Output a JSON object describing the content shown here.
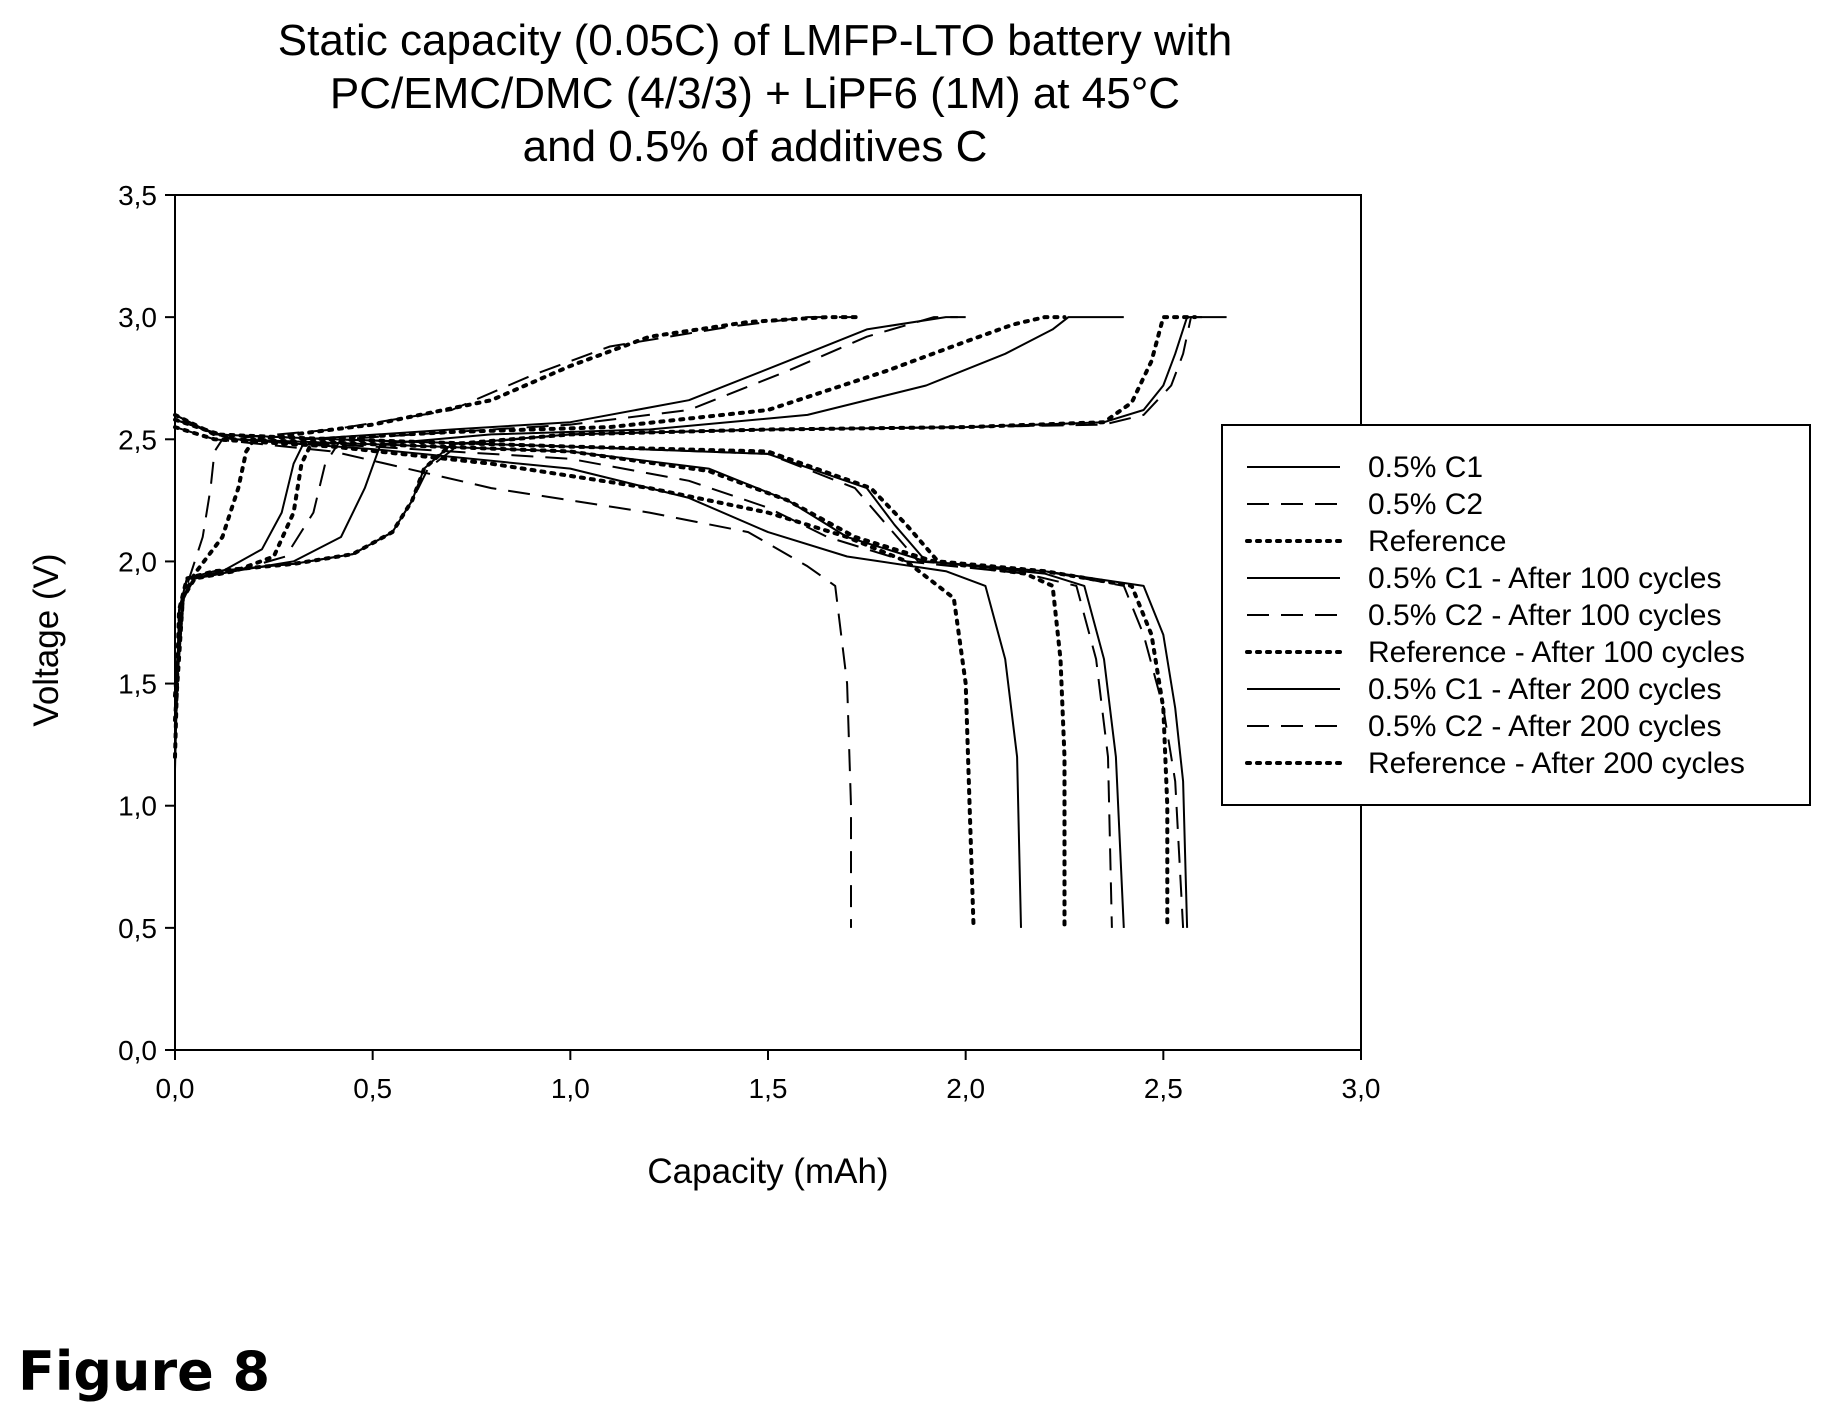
{
  "figure_label": "Figure 8",
  "chart_data": {
    "type": "line",
    "title_lines": [
      "Static capacity (0.05C) of LMFP-LTO battery with",
      "PC/EMC/DMC (4/3/3) + LiPF6 (1M) at 45°C",
      "and 0.5% of additives C"
    ],
    "xlabel": "Capacity (mAh)",
    "ylabel": "Voltage (V)",
    "xlim": [
      0,
      3.0
    ],
    "ylim": [
      0,
      3.5
    ],
    "x_ticks": [
      0.0,
      0.5,
      1.0,
      1.5,
      2.0,
      2.5,
      3.0
    ],
    "x_tick_labels": [
      "0,0",
      "0,5",
      "1,0",
      "1,5",
      "2,0",
      "2,5",
      "3,0"
    ],
    "y_ticks": [
      0.0,
      0.5,
      1.0,
      1.5,
      2.0,
      2.5,
      3.0,
      3.5
    ],
    "y_tick_labels": [
      "0,0",
      "0,5",
      "1,0",
      "1,5",
      "2,0",
      "2,5",
      "3,0",
      "3,5"
    ],
    "grid": false,
    "legend_position": "right",
    "colors": {
      "line": "#000000",
      "background": "#ffffff"
    },
    "series": [
      {
        "name": "0.5% C1",
        "style": "solid",
        "charge": [
          [
            0.0,
            1.15
          ],
          [
            0.01,
            1.8
          ],
          [
            0.03,
            1.93
          ],
          [
            0.1,
            1.96
          ],
          [
            0.3,
            1.99
          ],
          [
            0.45,
            2.03
          ],
          [
            0.55,
            2.12
          ],
          [
            0.6,
            2.25
          ],
          [
            0.63,
            2.38
          ],
          [
            0.7,
            2.48
          ],
          [
            1.0,
            2.52
          ],
          [
            1.5,
            2.54
          ],
          [
            2.0,
            2.55
          ],
          [
            2.35,
            2.57
          ],
          [
            2.45,
            2.62
          ],
          [
            2.5,
            2.72
          ],
          [
            2.53,
            2.85
          ],
          [
            2.56,
            3.0
          ],
          [
            2.66,
            3.0
          ]
        ],
        "discharge": [
          [
            0.0,
            2.6
          ],
          [
            0.1,
            2.52
          ],
          [
            0.4,
            2.5
          ],
          [
            1.0,
            2.47
          ],
          [
            1.5,
            2.44
          ],
          [
            1.75,
            2.3
          ],
          [
            1.82,
            2.15
          ],
          [
            1.9,
            2.0
          ],
          [
            2.2,
            1.96
          ],
          [
            2.45,
            1.9
          ],
          [
            2.5,
            1.7
          ],
          [
            2.53,
            1.4
          ],
          [
            2.55,
            1.1
          ],
          [
            2.56,
            0.5
          ]
        ]
      },
      {
        "name": "0.5% C2",
        "style": "dashed",
        "charge": [
          [
            0.0,
            1.2
          ],
          [
            0.01,
            1.8
          ],
          [
            0.03,
            1.93
          ],
          [
            0.1,
            1.96
          ],
          [
            0.3,
            1.99
          ],
          [
            0.45,
            2.03
          ],
          [
            0.55,
            2.12
          ],
          [
            0.6,
            2.25
          ],
          [
            0.64,
            2.38
          ],
          [
            0.72,
            2.48
          ],
          [
            1.0,
            2.52
          ],
          [
            1.5,
            2.54
          ],
          [
            2.0,
            2.55
          ],
          [
            2.35,
            2.56
          ],
          [
            2.45,
            2.6
          ],
          [
            2.52,
            2.72
          ],
          [
            2.55,
            2.85
          ],
          [
            2.57,
            3.0
          ],
          [
            2.62,
            3.0
          ]
        ],
        "discharge": [
          [
            0.0,
            2.6
          ],
          [
            0.1,
            2.52
          ],
          [
            0.4,
            2.5
          ],
          [
            1.0,
            2.47
          ],
          [
            1.5,
            2.44
          ],
          [
            1.72,
            2.3
          ],
          [
            1.8,
            2.15
          ],
          [
            1.88,
            2.0
          ],
          [
            2.2,
            1.96
          ],
          [
            2.4,
            1.9
          ],
          [
            2.45,
            1.7
          ],
          [
            2.5,
            1.4
          ],
          [
            2.53,
            1.1
          ],
          [
            2.55,
            0.5
          ]
        ]
      },
      {
        "name": "Reference",
        "style": "dotted",
        "charge": [
          [
            0.0,
            1.2
          ],
          [
            0.01,
            1.8
          ],
          [
            0.03,
            1.93
          ],
          [
            0.1,
            1.96
          ],
          [
            0.3,
            1.99
          ],
          [
            0.45,
            2.03
          ],
          [
            0.55,
            2.12
          ],
          [
            0.6,
            2.25
          ],
          [
            0.63,
            2.38
          ],
          [
            0.7,
            2.48
          ],
          [
            1.0,
            2.52
          ],
          [
            1.5,
            2.54
          ],
          [
            2.0,
            2.55
          ],
          [
            2.35,
            2.57
          ],
          [
            2.42,
            2.65
          ],
          [
            2.47,
            2.82
          ],
          [
            2.5,
            3.0
          ],
          [
            2.58,
            3.0
          ]
        ],
        "discharge": [
          [
            0.0,
            2.6
          ],
          [
            0.1,
            2.52
          ],
          [
            0.4,
            2.5
          ],
          [
            1.0,
            2.47
          ],
          [
            1.5,
            2.45
          ],
          [
            1.76,
            2.3
          ],
          [
            1.85,
            2.15
          ],
          [
            1.93,
            2.0
          ],
          [
            2.2,
            1.96
          ],
          [
            2.42,
            1.9
          ],
          [
            2.47,
            1.7
          ],
          [
            2.5,
            1.4
          ],
          [
            2.51,
            1.0
          ],
          [
            2.51,
            0.5
          ]
        ]
      },
      {
        "name": "0.5% C1 - After 100 cycles",
        "style": "solid",
        "charge": [
          [
            0.0,
            1.4
          ],
          [
            0.02,
            1.85
          ],
          [
            0.05,
            1.93
          ],
          [
            0.15,
            1.96
          ],
          [
            0.3,
            2.0
          ],
          [
            0.42,
            2.1
          ],
          [
            0.48,
            2.3
          ],
          [
            0.52,
            2.48
          ],
          [
            0.8,
            2.52
          ],
          [
            1.2,
            2.54
          ],
          [
            1.6,
            2.6
          ],
          [
            1.9,
            2.72
          ],
          [
            2.1,
            2.85
          ],
          [
            2.22,
            2.95
          ],
          [
            2.26,
            3.0
          ],
          [
            2.4,
            3.0
          ]
        ],
        "discharge": [
          [
            0.0,
            2.58
          ],
          [
            0.15,
            2.5
          ],
          [
            0.5,
            2.48
          ],
          [
            1.0,
            2.45
          ],
          [
            1.35,
            2.38
          ],
          [
            1.55,
            2.25
          ],
          [
            1.7,
            2.1
          ],
          [
            1.9,
            2.0
          ],
          [
            2.2,
            1.95
          ],
          [
            2.3,
            1.9
          ],
          [
            2.35,
            1.6
          ],
          [
            2.38,
            1.2
          ],
          [
            2.4,
            0.5
          ]
        ]
      },
      {
        "name": "0.5% C2 - After 100 cycles",
        "style": "dashed",
        "charge": [
          [
            0.0,
            1.4
          ],
          [
            0.02,
            1.85
          ],
          [
            0.05,
            1.93
          ],
          [
            0.15,
            1.96
          ],
          [
            0.28,
            2.02
          ],
          [
            0.35,
            2.2
          ],
          [
            0.38,
            2.4
          ],
          [
            0.42,
            2.5
          ],
          [
            0.7,
            2.53
          ],
          [
            1.0,
            2.56
          ],
          [
            1.3,
            2.62
          ],
          [
            1.55,
            2.78
          ],
          [
            1.75,
            2.92
          ],
          [
            1.92,
            3.0
          ],
          [
            1.98,
            3.0
          ]
        ],
        "discharge": [
          [
            0.0,
            2.58
          ],
          [
            0.15,
            2.5
          ],
          [
            0.5,
            2.47
          ],
          [
            1.0,
            2.42
          ],
          [
            1.3,
            2.33
          ],
          [
            1.5,
            2.22
          ],
          [
            1.65,
            2.1
          ],
          [
            1.85,
            2.0
          ],
          [
            2.15,
            1.95
          ],
          [
            2.28,
            1.9
          ],
          [
            2.33,
            1.6
          ],
          [
            2.36,
            1.2
          ],
          [
            2.37,
            0.5
          ]
        ]
      },
      {
        "name": "Reference - After 100 cycles",
        "style": "dotted",
        "charge": [
          [
            0.0,
            1.35
          ],
          [
            0.02,
            1.85
          ],
          [
            0.05,
            1.93
          ],
          [
            0.15,
            1.96
          ],
          [
            0.25,
            2.02
          ],
          [
            0.3,
            2.2
          ],
          [
            0.32,
            2.4
          ],
          [
            0.35,
            2.5
          ],
          [
            0.7,
            2.53
          ],
          [
            1.1,
            2.55
          ],
          [
            1.5,
            2.62
          ],
          [
            1.8,
            2.78
          ],
          [
            2.0,
            2.9
          ],
          [
            2.12,
            2.97
          ],
          [
            2.2,
            3.0
          ],
          [
            2.25,
            3.0
          ]
        ],
        "discharge": [
          [
            0.0,
            2.58
          ],
          [
            0.15,
            2.5
          ],
          [
            0.5,
            2.48
          ],
          [
            1.0,
            2.45
          ],
          [
            1.35,
            2.37
          ],
          [
            1.55,
            2.25
          ],
          [
            1.72,
            2.1
          ],
          [
            1.92,
            2.0
          ],
          [
            2.15,
            1.95
          ],
          [
            2.22,
            1.9
          ],
          [
            2.24,
            1.6
          ],
          [
            2.25,
            1.2
          ],
          [
            2.25,
            0.5
          ]
        ]
      },
      {
        "name": "0.5% C1 - After 200 cycles",
        "style": "solid",
        "charge": [
          [
            0.0,
            1.5
          ],
          [
            0.02,
            1.85
          ],
          [
            0.05,
            1.93
          ],
          [
            0.12,
            1.96
          ],
          [
            0.22,
            2.05
          ],
          [
            0.27,
            2.2
          ],
          [
            0.3,
            2.4
          ],
          [
            0.33,
            2.5
          ],
          [
            0.7,
            2.54
          ],
          [
            1.0,
            2.57
          ],
          [
            1.3,
            2.66
          ],
          [
            1.55,
            2.82
          ],
          [
            1.75,
            2.95
          ],
          [
            1.95,
            3.0
          ],
          [
            2.0,
            3.0
          ]
        ],
        "discharge": [
          [
            0.0,
            2.58
          ],
          [
            0.15,
            2.5
          ],
          [
            0.5,
            2.46
          ],
          [
            1.0,
            2.38
          ],
          [
            1.3,
            2.26
          ],
          [
            1.5,
            2.12
          ],
          [
            1.7,
            2.02
          ],
          [
            1.95,
            1.96
          ],
          [
            2.05,
            1.9
          ],
          [
            2.1,
            1.6
          ],
          [
            2.13,
            1.2
          ],
          [
            2.14,
            0.5
          ]
        ]
      },
      {
        "name": "0.5% C2 - After 200 cycles",
        "style": "dashed",
        "charge": [
          [
            0.0,
            1.5
          ],
          [
            0.02,
            1.85
          ],
          [
            0.04,
            1.95
          ],
          [
            0.07,
            2.1
          ],
          [
            0.09,
            2.3
          ],
          [
            0.1,
            2.45
          ],
          [
            0.12,
            2.5
          ],
          [
            0.4,
            2.54
          ],
          [
            0.7,
            2.62
          ],
          [
            0.9,
            2.76
          ],
          [
            1.1,
            2.88
          ],
          [
            1.4,
            2.96
          ],
          [
            1.6,
            3.0
          ],
          [
            1.72,
            3.0
          ]
        ],
        "discharge": [
          [
            0.0,
            2.55
          ],
          [
            0.1,
            2.5
          ],
          [
            0.4,
            2.45
          ],
          [
            0.8,
            2.3
          ],
          [
            1.2,
            2.2
          ],
          [
            1.45,
            2.12
          ],
          [
            1.6,
            1.98
          ],
          [
            1.67,
            1.9
          ],
          [
            1.7,
            1.5
          ],
          [
            1.71,
            1.0
          ],
          [
            1.71,
            0.5
          ]
        ]
      },
      {
        "name": "Reference - After 200 cycles",
        "style": "dotted",
        "charge": [
          [
            0.0,
            1.45
          ],
          [
            0.02,
            1.85
          ],
          [
            0.05,
            1.95
          ],
          [
            0.12,
            2.1
          ],
          [
            0.16,
            2.3
          ],
          [
            0.18,
            2.45
          ],
          [
            0.2,
            2.5
          ],
          [
            0.5,
            2.56
          ],
          [
            0.8,
            2.66
          ],
          [
            1.0,
            2.8
          ],
          [
            1.2,
            2.92
          ],
          [
            1.45,
            2.98
          ],
          [
            1.65,
            3.0
          ],
          [
            1.73,
            3.0
          ]
        ],
        "discharge": [
          [
            0.0,
            2.55
          ],
          [
            0.1,
            2.5
          ],
          [
            0.4,
            2.47
          ],
          [
            0.8,
            2.4
          ],
          [
            1.2,
            2.3
          ],
          [
            1.5,
            2.2
          ],
          [
            1.7,
            2.1
          ],
          [
            1.85,
            2.0
          ],
          [
            1.97,
            1.85
          ],
          [
            2.0,
            1.5
          ],
          [
            2.01,
            1.0
          ],
          [
            2.02,
            0.5
          ]
        ]
      }
    ]
  }
}
